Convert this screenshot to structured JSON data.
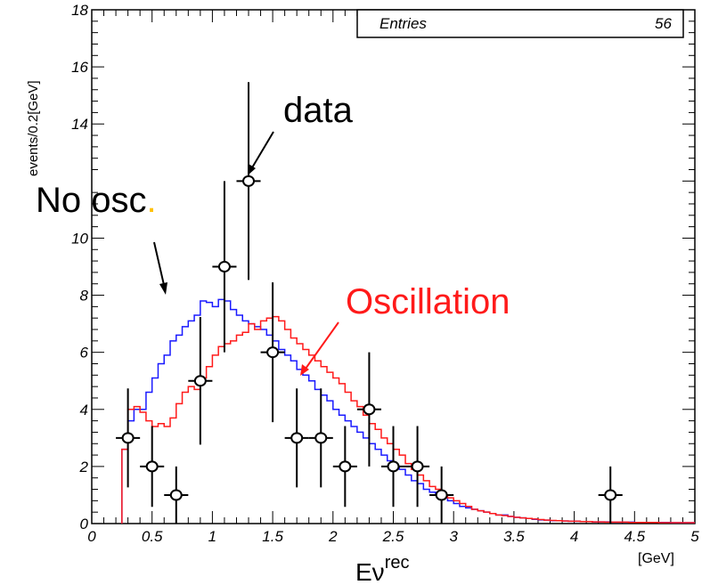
{
  "chart_data": {
    "type": "line",
    "ylabel": "events/0.2[GeV]",
    "xlabel_main": "Eν",
    "xlabel_sup": "rec",
    "x_unit": "[GeV]",
    "xlim": [
      0,
      5
    ],
    "ylim": [
      0,
      18
    ],
    "x_ticks": [
      0,
      0.5,
      1,
      1.5,
      2,
      2.5,
      3,
      3.5,
      4,
      4.5,
      5
    ],
    "x_tick_labels": [
      "0",
      "0.5",
      "1",
      "1.5",
      "2",
      "2.5",
      "3",
      "3.5",
      "4",
      "4.5",
      "5"
    ],
    "y_ticks": [
      0,
      2,
      4,
      6,
      8,
      10,
      14,
      16,
      18
    ],
    "y_tick_labels": [
      "0",
      "2",
      "4",
      "6",
      "8",
      "10",
      "14",
      "16",
      "18"
    ],
    "stats_box": {
      "label": "Entries",
      "value": "56"
    },
    "annotations": {
      "data": "data",
      "no_osc": "No osc",
      "no_osc_dot": ".",
      "oscillation": "Oscillation"
    },
    "colors": {
      "no_osc": "#1a1aff",
      "oscillation": "#ff1a1a",
      "data": "#000000",
      "dot": "#ffc000"
    },
    "histogram_bin_width": 0.05,
    "series": [
      {
        "key": "no_osc",
        "x_start": 0.25,
        "values": [
          2.6,
          3.6,
          4.0,
          4.0,
          4.6,
          5.1,
          5.6,
          5.9,
          6.4,
          6.6,
          6.9,
          7.1,
          7.3,
          7.8,
          7.75,
          7.6,
          7.85,
          7.8,
          7.5,
          7.3,
          7.1,
          7.0,
          6.9,
          6.8,
          6.6,
          6.4,
          6.1,
          5.9,
          5.7,
          5.4,
          5.2,
          5.0,
          4.7,
          4.5,
          4.3,
          4.0,
          3.8,
          3.6,
          3.4,
          3.2,
          3.0,
          2.8,
          2.6,
          2.4,
          2.2,
          2.0,
          1.9,
          1.7,
          1.5,
          1.4,
          1.2,
          1.1,
          1.0,
          0.9,
          0.8,
          0.7,
          0.6,
          0.55,
          0.5,
          0.45,
          0.4,
          0.35,
          0.3,
          0.3,
          0.25,
          0.22,
          0.2,
          0.18,
          0.15,
          0.13,
          0.12,
          0.1,
          0.1,
          0.09,
          0.08,
          0.08,
          0.07,
          0.07,
          0.06,
          0.06,
          0.06,
          0.05,
          0.05,
          0.05,
          0.05,
          0.04,
          0.04,
          0.04,
          0.04,
          0.04,
          0.04,
          0.03,
          0.03,
          0.03,
          0.03
        ]
      },
      {
        "key": "oscillation",
        "x_start": 0.25,
        "values": [
          2.6,
          4.0,
          4.1,
          3.9,
          3.6,
          3.4,
          3.5,
          3.4,
          3.7,
          4.2,
          4.6,
          4.8,
          4.7,
          5.1,
          5.5,
          5.9,
          6.2,
          6.3,
          6.4,
          6.6,
          6.7,
          7.0,
          6.8,
          7.1,
          7.2,
          7.25,
          7.1,
          6.8,
          6.5,
          6.3,
          6.1,
          5.9,
          5.7,
          5.5,
          5.3,
          5.1,
          4.9,
          4.6,
          4.3,
          4.1,
          3.8,
          3.5,
          3.3,
          3.0,
          2.8,
          2.6,
          2.4,
          2.1,
          1.9,
          1.7,
          1.5,
          1.3,
          1.2,
          1.0,
          0.9,
          0.8,
          0.7,
          0.6,
          0.5,
          0.45,
          0.4,
          0.35,
          0.3,
          0.28,
          0.25,
          0.22,
          0.2,
          0.18,
          0.16,
          0.14,
          0.12,
          0.11,
          0.1,
          0.09,
          0.08,
          0.08,
          0.07,
          0.07,
          0.06,
          0.06,
          0.05,
          0.05,
          0.05,
          0.05,
          0.04,
          0.04,
          0.04,
          0.04,
          0.04,
          0.03,
          0.03,
          0.03,
          0.03,
          0.03,
          0.03
        ]
      },
      {
        "key": "data",
        "x": [
          0.3,
          0.5,
          0.7,
          0.9,
          1.1,
          1.3,
          1.5,
          1.7,
          1.9,
          2.1,
          2.3,
          2.5,
          2.7,
          2.9,
          4.3
        ],
        "y": [
          3,
          2,
          1,
          5,
          9,
          12,
          6,
          3,
          3,
          2,
          4,
          2,
          2,
          1,
          1
        ]
      }
    ]
  }
}
